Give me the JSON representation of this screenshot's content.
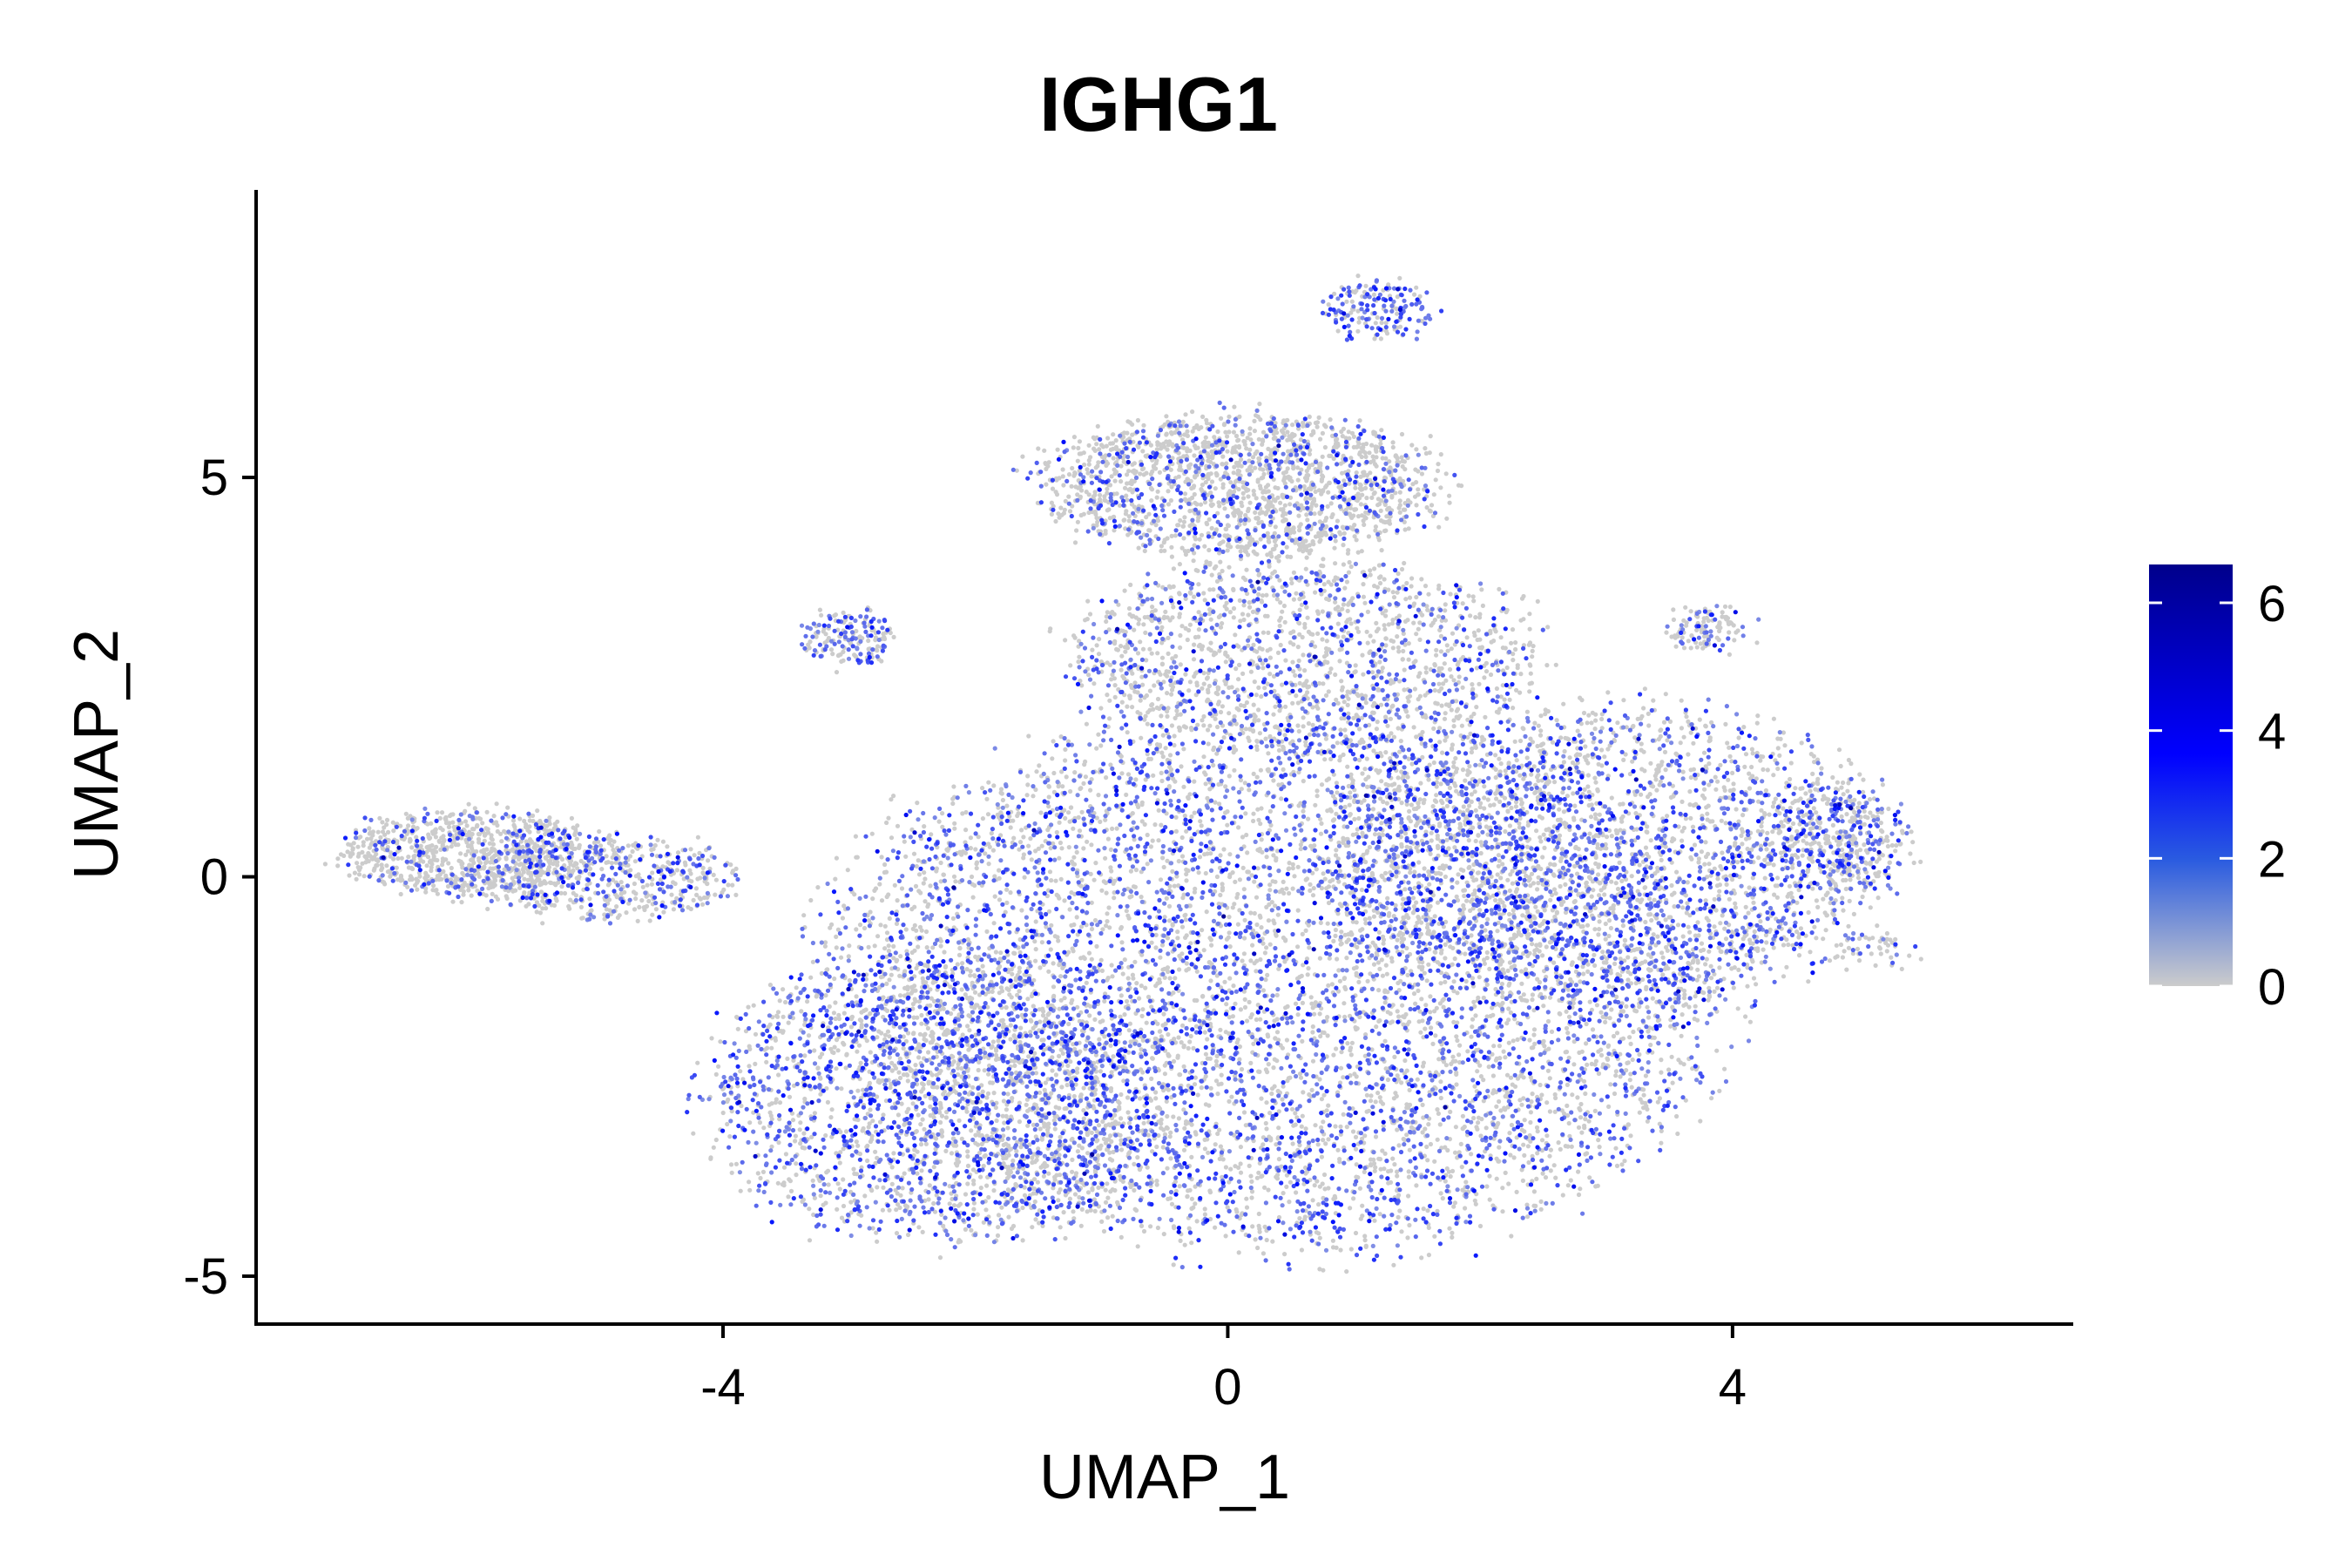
{
  "chart_data": {
    "type": "scatter",
    "title": "IGHG1",
    "xlabel": "UMAP_1",
    "ylabel": "UMAP_2",
    "xlim": [
      -7.7,
      6.7
    ],
    "ylim": [
      -5.6,
      8.6
    ],
    "x_ticks": [
      {
        "value": -4,
        "label": "-4"
      },
      {
        "value": 0,
        "label": "0"
      },
      {
        "value": 4,
        "label": "4"
      }
    ],
    "y_ticks": [
      {
        "value": -5,
        "label": "-5"
      },
      {
        "value": 0,
        "label": "0"
      },
      {
        "value": 5,
        "label": "5"
      }
    ],
    "grid": false,
    "legend": {
      "position": "right",
      "type": "colorbar",
      "range": [
        0,
        6.6
      ],
      "ticks": [
        {
          "value": 0,
          "label": "0"
        },
        {
          "value": 2,
          "label": "2"
        },
        {
          "value": 4,
          "label": "4"
        },
        {
          "value": 6,
          "label": "6"
        }
      ]
    },
    "color_scale": {
      "low": "#CCCCCC",
      "mid": "#0000FF",
      "high": "#00008B"
    },
    "point_regions": [
      {
        "cx": 0.4,
        "cy": -1.3,
        "rx": 3.6,
        "ry": 3.4,
        "n": 7200,
        "expr_prob": 0.46
      },
      {
        "cx": -2.3,
        "cy": -2.8,
        "rx": 1.9,
        "ry": 1.8,
        "n": 2200,
        "expr_prob": 0.5
      },
      {
        "cx": 3.0,
        "cy": 0.3,
        "rx": 2.3,
        "ry": 1.9,
        "n": 2600,
        "expr_prob": 0.44
      },
      {
        "cx": 0.6,
        "cy": 2.8,
        "rx": 1.9,
        "ry": 1.2,
        "n": 1500,
        "expr_prob": 0.32
      },
      {
        "cx": 0.1,
        "cy": 4.9,
        "rx": 1.6,
        "ry": 0.9,
        "n": 1800,
        "expr_prob": 0.24
      },
      {
        "cx": -6.0,
        "cy": 0.3,
        "rx": 1.0,
        "ry": 0.55,
        "n": 900,
        "expr_prob": 0.22
      },
      {
        "cx": -4.9,
        "cy": 0.0,
        "rx": 1.0,
        "ry": 0.5,
        "n": 550,
        "expr_prob": 0.35
      },
      {
        "cx": -3.0,
        "cy": 3.0,
        "rx": 0.35,
        "ry": 0.35,
        "n": 180,
        "expr_prob": 0.42
      },
      {
        "cx": 1.2,
        "cy": 7.1,
        "rx": 0.4,
        "ry": 0.35,
        "n": 180,
        "expr_prob": 0.6
      },
      {
        "cx": 3.8,
        "cy": 3.1,
        "rx": 0.3,
        "ry": 0.25,
        "n": 120,
        "expr_prob": 0.35
      },
      {
        "cx": 4.8,
        "cy": 0.5,
        "rx": 0.55,
        "ry": 0.7,
        "n": 300,
        "expr_prob": 0.45
      },
      {
        "cx": 5.1,
        "cy": -0.9,
        "rx": 0.35,
        "ry": 0.2,
        "n": 50,
        "expr_prob": 0.3
      }
    ]
  }
}
